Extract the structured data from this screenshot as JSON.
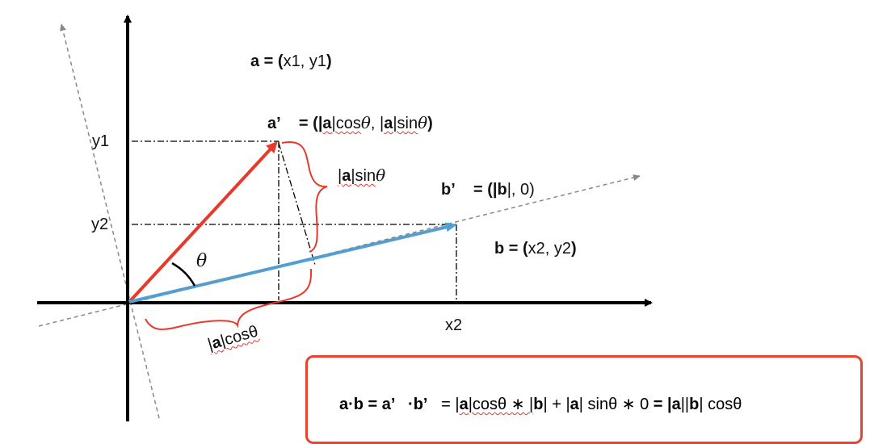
{
  "labels": {
    "a_def": {
      "name": "a",
      "eq": " = (",
      "val": "x1, y1",
      "close": ")"
    },
    "a_prime": {
      "name": "a’",
      "eq": "= (|",
      "a1": "a",
      "mid1": "|cos",
      "theta1": "θ",
      "comma": ", |",
      "a2": "a",
      "mid2": "|sin",
      "theta2": "θ",
      "close": ")"
    },
    "sin_label": {
      "pre": "|",
      "a": "a",
      "post": "|sin",
      "theta": "θ"
    },
    "b_prime": {
      "name": "b’",
      "eq": "= (|",
      "b": "b",
      "post": "|, 0)"
    },
    "b_def": {
      "name": "b",
      "eq": " = (",
      "val": "x2, y2",
      "close": ")"
    },
    "cos_label": {
      "pre": "|",
      "a": "a",
      "post": "|cosθ"
    },
    "theta": "θ",
    "y1": "y1",
    "y2": "y2",
    "x2": "x2"
  },
  "formula": {
    "lhs": "a·b = a’   ·b’",
    "eq1": "   = |",
    "a1": "a",
    "t1": "|cosθ ∗ |",
    "b1": "b",
    "t2": "| + |",
    "a2": "a",
    "t3": "| sinθ ∗ 0 ",
    "eq2": "= |",
    "a3": "a",
    "t4": "||",
    "b2": "b",
    "t5": "| cosθ"
  },
  "colors": {
    "vector_a": "#e8392b",
    "vector_b": "#4aa3df",
    "brace": "#e8392b",
    "box_border": "#e8432f",
    "axis": "#000000",
    "rotated_axis": "#888888"
  }
}
